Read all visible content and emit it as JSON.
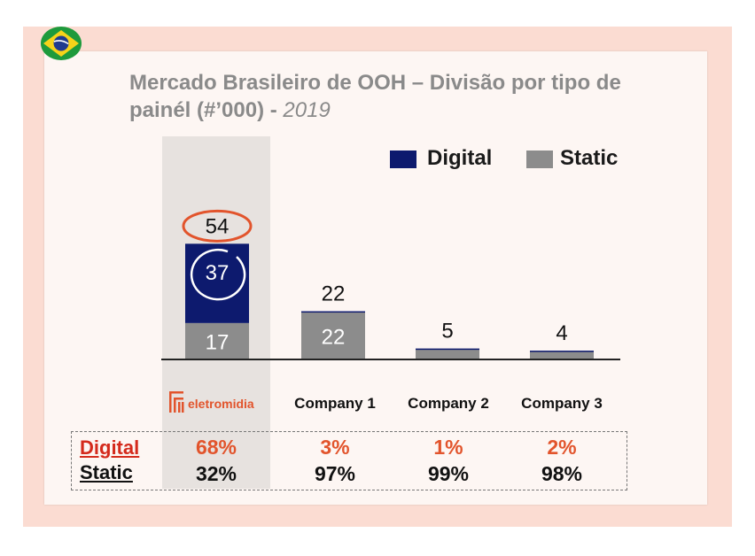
{
  "title": {
    "main": "Mercado Brasileiro de OOH – Divisão por tipo de painél (#’000) -",
    "year": "2019"
  },
  "legend": [
    {
      "label": "Digital",
      "color": "#0d1a6e"
    },
    {
      "label": "Static",
      "color": "#8c8c8c"
    }
  ],
  "logo": {
    "text": "eletromidia",
    "icon": "eletromidia-logo-icon",
    "color": "#e2542c"
  },
  "chart_data": {
    "type": "bar",
    "stacked": true,
    "categories": [
      "eletromidia",
      "Company 1",
      "Company 2",
      "Company 3"
    ],
    "series": [
      {
        "name": "Digital",
        "values": [
          37,
          0.5,
          0.1,
          0.1
        ],
        "labels": [
          "37",
          "",
          "",
          ""
        ]
      },
      {
        "name": "Static",
        "values": [
          17,
          22,
          5,
          4
        ],
        "labels": [
          "17",
          "22",
          "",
          ""
        ]
      }
    ],
    "totals": [
      54,
      22,
      5,
      4
    ],
    "total_labels": [
      "54",
      "22",
      "5",
      "4"
    ],
    "colors": {
      "digital": "#0d1a6e",
      "static": "#8c8c8c",
      "highlight": "#e2542c"
    },
    "grid": false,
    "legend_position": "top-right"
  },
  "share_table": {
    "rows": [
      {
        "label": "Digital",
        "color": "#d42a1c",
        "values": [
          "68%",
          "3%",
          "1%",
          "2%"
        ],
        "value_color": "#e2542c"
      },
      {
        "label": "Static",
        "color": "#111111",
        "values": [
          "32%",
          "97%",
          "99%",
          "98%"
        ],
        "value_color": "#111111"
      }
    ]
  }
}
